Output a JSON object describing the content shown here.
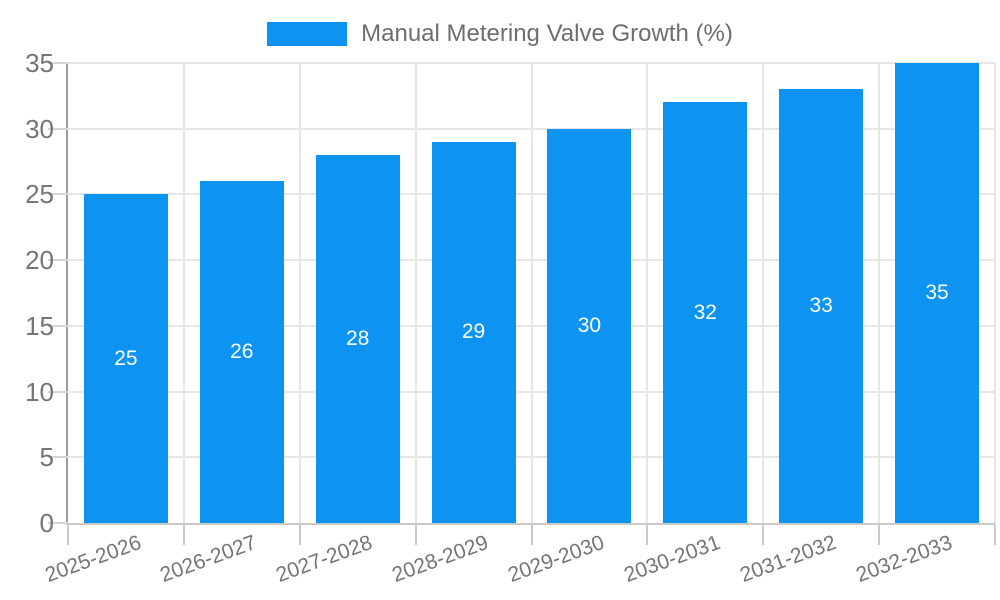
{
  "chart_data": {
    "type": "bar",
    "title": "Manual Metering Valve Growth (%)",
    "categories": [
      "2025-2026",
      "2026-2027",
      "2027-2028",
      "2028-2029",
      "2029-2030",
      "2030-2031",
      "2031-2032",
      "2032-2033"
    ],
    "values": [
      25,
      26,
      28,
      29,
      30,
      32,
      33,
      35
    ],
    "series": [
      {
        "name": "Manual Metering Valve Growth (%)",
        "values": [
          25,
          26,
          28,
          29,
          30,
          32,
          33,
          35
        ]
      }
    ],
    "value_labels_shown": true,
    "ylim": [
      0,
      35
    ],
    "yticks": [
      0,
      5,
      10,
      15,
      20,
      25,
      30,
      35
    ],
    "xlabel": "",
    "ylabel": "",
    "grid": true,
    "legend_position": "top-center",
    "colors": {
      "bar": "#0d94f2",
      "value_label": "#ffffff",
      "axis_text": "#757575",
      "legend_text": "#6e6e6e",
      "gridline": "#e6e6e6",
      "y_axis_line": "#9b9b9b",
      "x_axis_line": "#c9c9c9",
      "background": "#ffffff"
    }
  }
}
